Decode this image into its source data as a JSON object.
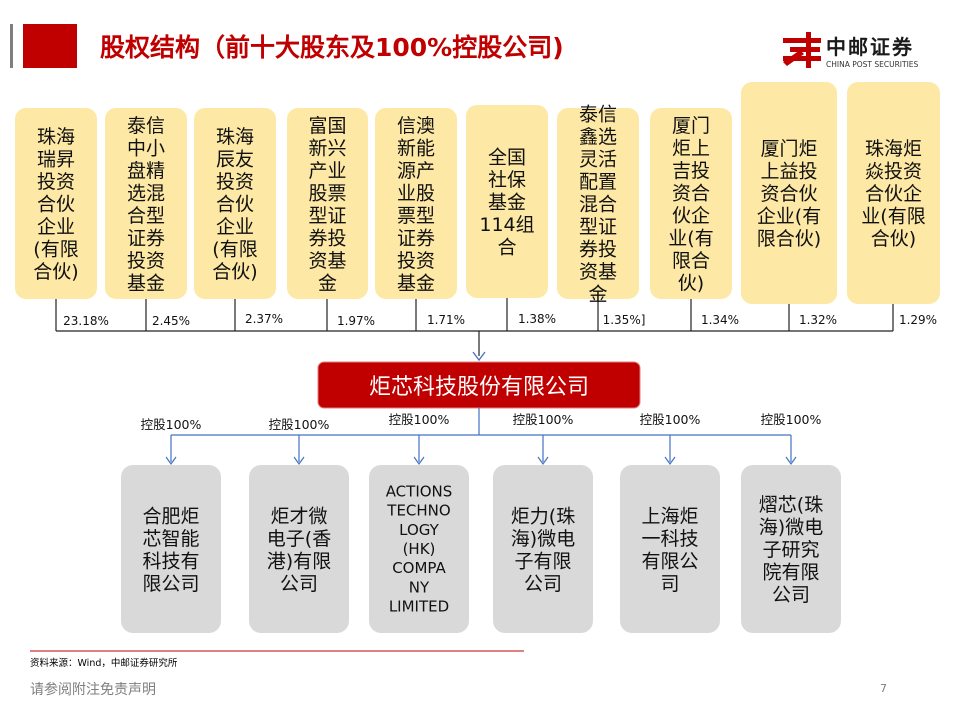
{
  "header": {
    "title": "股权结构（前十大股东及100%控股公司)",
    "logo_cn": "中邮证券",
    "logo_en": "CHINA POST SECURITIES"
  },
  "shareholders": [
    {
      "name": [
        "珠海",
        "瑞昇",
        "投资",
        "合伙",
        "企业",
        "(有限",
        "合伙)"
      ],
      "pct": "23.18%"
    },
    {
      "name": [
        "泰信",
        "中小",
        "盘精",
        "选混",
        "合型",
        "证券",
        "投资",
        "基金"
      ],
      "pct": "2.45%"
    },
    {
      "name": [
        "珠海",
        "辰友",
        "投资",
        "合伙",
        "企业",
        "(有限",
        "合伙)"
      ],
      "pct": "2.37%"
    },
    {
      "name": [
        "富国",
        "新兴",
        "产业",
        "股票",
        "型证",
        "券投",
        "资基",
        "金"
      ],
      "pct": "1.97%"
    },
    {
      "name": [
        "信澳",
        "新能",
        "源产",
        "业股",
        "票型",
        "证券",
        "投资",
        "基金"
      ],
      "pct": "1.71%"
    },
    {
      "name": [
        "全国",
        "社保",
        "基金",
        "114组",
        "合"
      ],
      "pct": "1.38%"
    },
    {
      "name": [
        "泰信",
        "鑫选",
        "灵活",
        "配置",
        "混合",
        "型证",
        "券投",
        "资基",
        "金"
      ],
      "pct": "1.35%]"
    },
    {
      "name": [
        "厦门",
        "炬上",
        "吉投",
        "资合",
        "伙企",
        "业(有",
        "限合",
        "伙)"
      ],
      "pct": "1.34%"
    },
    {
      "name": [
        "厦门炬",
        "上益投",
        "资合伙",
        "企业(有",
        "限合伙)"
      ],
      "pct": "1.32%"
    },
    {
      "name": [
        "珠海炬",
        "焱投资",
        "合伙企",
        "业(有限",
        "合伙)"
      ],
      "pct": "1.29%"
    }
  ],
  "company": {
    "name": "炬芯科技股份有限公司"
  },
  "subsidiaries": [
    {
      "name": [
        "合肥炬",
        "芯智能",
        "科技有",
        "限公司"
      ],
      "holding": "控股100%"
    },
    {
      "name": [
        "炬才微",
        "电子(香",
        "港)有限",
        "公司"
      ],
      "holding": "控股100%"
    },
    {
      "name": [
        "ACTIONS",
        "TECHNO",
        "LOGY",
        "(HK)",
        "COMPA",
        "NY",
        "LIMITED"
      ],
      "holding": "控股100%"
    },
    {
      "name": [
        "炬力(珠",
        "海)微电",
        "子有限",
        "公司"
      ],
      "holding": "控股100%"
    },
    {
      "name": [
        "上海炬",
        "一科技",
        "有限公",
        "司"
      ],
      "holding": "控股100%"
    },
    {
      "name": [
        "熠芯(珠",
        "海)微电",
        "子研究",
        "院有限",
        "公司"
      ],
      "holding": "控股100%"
    }
  ],
  "footer": {
    "source": "资料来源：Wind，中邮证券研究所",
    "disclaimer": "请参阅附注免责声明",
    "page": "7"
  },
  "colors": {
    "accent_red": "#c00000",
    "shareholder_fill": "#fde9a5",
    "subsidiary_fill": "#d9d9d9",
    "arrow_blue": "#4472c4"
  }
}
